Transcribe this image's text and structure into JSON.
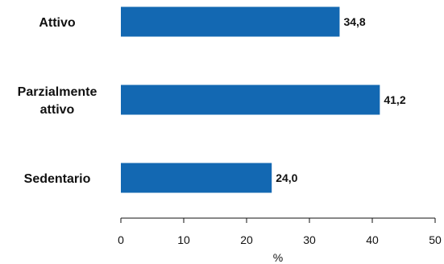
{
  "chart_data": {
    "type": "bar",
    "orientation": "horizontal",
    "categories": [
      [
        "Attivo"
      ],
      [
        "Parzialmente",
        "attivo"
      ],
      [
        "Sedentario"
      ]
    ],
    "values": [
      34.8,
      41.2,
      24.0
    ],
    "value_labels": [
      "34,8",
      "41,2",
      "24,0"
    ],
    "xlabel": "%",
    "xlim": [
      0,
      50
    ],
    "xticks": [
      0,
      10,
      20,
      30,
      40,
      50
    ],
    "xtick_labels": [
      "0",
      "10",
      "20",
      "30",
      "40",
      "50"
    ],
    "grid": false,
    "bar_color": "#1368B2"
  }
}
